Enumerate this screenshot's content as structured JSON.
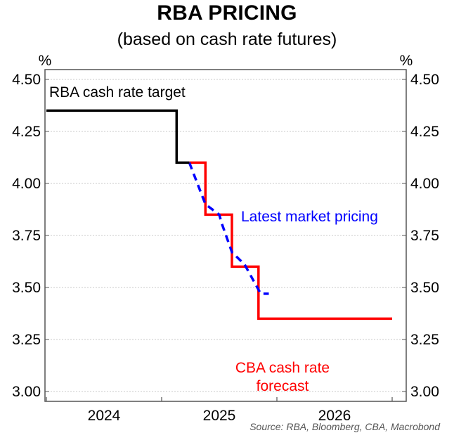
{
  "chart_data": {
    "type": "line",
    "title": "RBA PRICING",
    "subtitle": "(based on cash rate futures)",
    "xlabel": "",
    "ylabel": "%",
    "y_unit_left": "%",
    "y_unit_right": "%",
    "ylim": [
      2.97,
      4.55
    ],
    "yticks": [
      3.0,
      3.25,
      3.5,
      3.75,
      4.0,
      4.25,
      4.5
    ],
    "ytick_labels": [
      "3.00",
      "3.25",
      "3.50",
      "3.75",
      "4.00",
      "4.25",
      "4.50"
    ],
    "xlim": [
      2023.98,
      2027.13
    ],
    "xticks": [
      2024.0,
      2025.0,
      2026.0,
      2027.0
    ],
    "xtick_labels": [
      {
        "label": "2024",
        "x": 2024.5
      },
      {
        "label": "2025",
        "x": 2025.5
      },
      {
        "label": "2026",
        "x": 2026.5
      }
    ],
    "grid": true,
    "series": [
      {
        "name": "RBA cash rate target",
        "color": "#000000",
        "style": "step-solid",
        "points": [
          [
            2024.0,
            4.35
          ],
          [
            2025.13,
            4.35
          ],
          [
            2025.13,
            4.1
          ],
          [
            2025.24,
            4.1
          ]
        ]
      },
      {
        "name": "CBA cash rate forecast",
        "color": "#ff0000",
        "style": "step-solid",
        "points": [
          [
            2025.24,
            4.1
          ],
          [
            2025.38,
            4.1
          ],
          [
            2025.38,
            3.85
          ],
          [
            2025.61,
            3.85
          ],
          [
            2025.61,
            3.6
          ],
          [
            2025.84,
            3.6
          ],
          [
            2025.84,
            3.35
          ],
          [
            2027.0,
            3.35
          ]
        ]
      },
      {
        "name": "Latest market pricing",
        "color": "#0000ff",
        "style": "dashed",
        "points": [
          [
            2025.24,
            4.1
          ],
          [
            2025.38,
            3.9
          ],
          [
            2025.5,
            3.85
          ],
          [
            2025.52,
            3.81
          ],
          [
            2025.61,
            3.67
          ],
          [
            2025.72,
            3.61
          ],
          [
            2025.83,
            3.5
          ],
          [
            2025.86,
            3.47
          ],
          [
            2025.93,
            3.47
          ]
        ]
      }
    ],
    "annotations": [
      {
        "text": "RBA cash rate target",
        "color": "#000000",
        "x": 2024.02,
        "y": 4.45,
        "anchor": "start"
      },
      {
        "text": "Latest market pricing",
        "color": "#0000ff",
        "x": 2025.67,
        "y": 3.84,
        "anchor": "start"
      },
      {
        "text": "CBA cash rate forecast",
        "color": "#ff0000",
        "x": 2025.97,
        "y": 3.1,
        "anchor": "middle",
        "line2": "forecast",
        "line1": "CBA cash rate"
      }
    ],
    "source": "Source: RBA, Bloomberg, CBA, Macrobond"
  }
}
